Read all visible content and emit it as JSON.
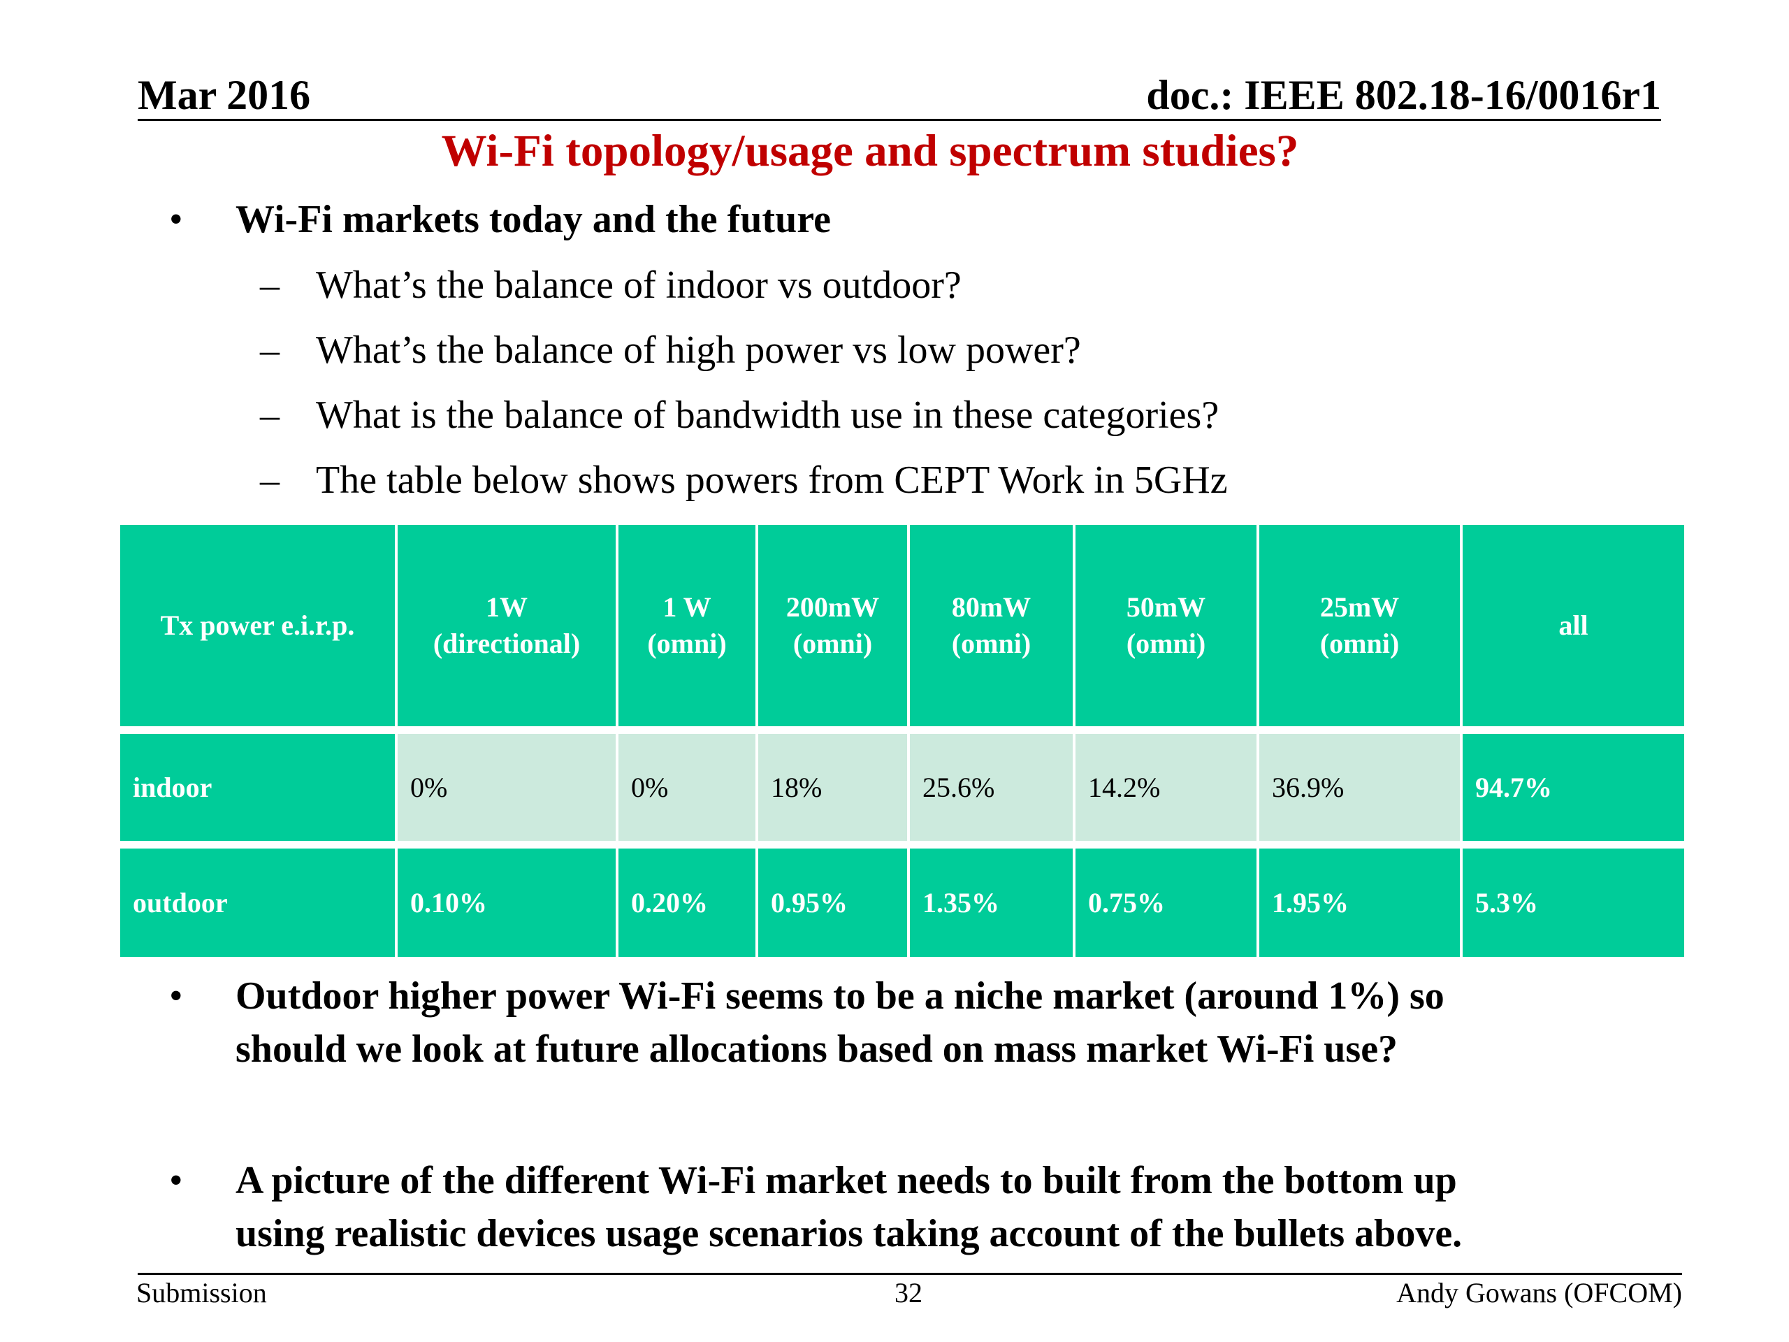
{
  "header": {
    "date": "Mar 2016",
    "doc": "doc.: IEEE 802.18-16/0016r1"
  },
  "title": "Wi-Fi topology/usage and spectrum studies?",
  "bullets": {
    "main1": "Wi-Fi markets today and the future",
    "subs": [
      "What’s the balance of indoor vs outdoor?",
      "What’s the balance of high power vs low power?",
      "What is the balance of bandwidth use in these categories?",
      "The table below shows powers from CEPT Work in 5GHz"
    ],
    "main2_line1": "Outdoor higher power Wi-Fi seems to be a niche market (around 1%) so",
    "main2_line2": "should we look at future allocations based on mass market Wi-Fi use?",
    "main3_line1": "A picture of the different Wi-Fi market needs to built from the bottom up",
    "main3_line2": "using realistic devices usage scenarios taking account of the bullets above.",
    "bullet_glyph": "•",
    "dash_glyph": "–"
  },
  "table": {
    "header": {
      "label": "Tx power e.i.r.p.",
      "cols": [
        {
          "line1": "1W",
          "line2": "(directional)"
        },
        {
          "line1": "1 W",
          "line2": "(omni)"
        },
        {
          "line1": "200mW",
          "line2": "(omni)"
        },
        {
          "line1": "80mW",
          "line2": "(omni)"
        },
        {
          "line1": "50mW",
          "line2": "(omni)"
        },
        {
          "line1": "25mW",
          "line2": "(omni)"
        },
        {
          "line1": "all",
          "line2": ""
        }
      ]
    },
    "rows": [
      {
        "label": "indoor",
        "values": [
          "0%",
          "0%",
          "18%",
          "25.6%",
          "14.2%",
          "36.9%",
          "94.7%"
        ]
      },
      {
        "label": "outdoor",
        "values": [
          "0.10%",
          "0.20%",
          "0.95%",
          "1.35%",
          "0.75%",
          "1.95%",
          "5.3%"
        ]
      }
    ],
    "colors": {
      "header_bg": "#00cc99",
      "light_cell_bg": "#cceadd",
      "grid": "#ffffff"
    }
  },
  "footer": {
    "left": "Submission",
    "page": "32",
    "right": "Andy Gowans (OFCOM)"
  }
}
